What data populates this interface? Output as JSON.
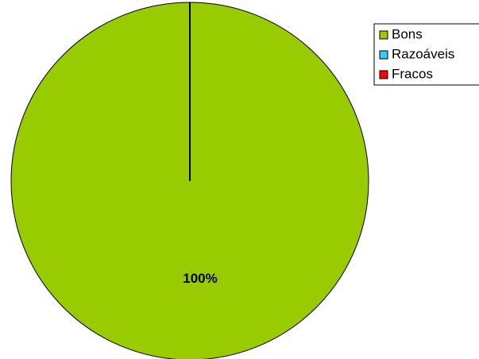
{
  "chart_data": {
    "type": "pie",
    "categories": [
      "Bons",
      "Razoáveis",
      "Fracos"
    ],
    "values": [
      100,
      0,
      0
    ],
    "value_labels": [
      "100%",
      null,
      null
    ],
    "colors": [
      "#99cc00",
      "#33ccff",
      "#ff0000"
    ],
    "legend": "right"
  }
}
